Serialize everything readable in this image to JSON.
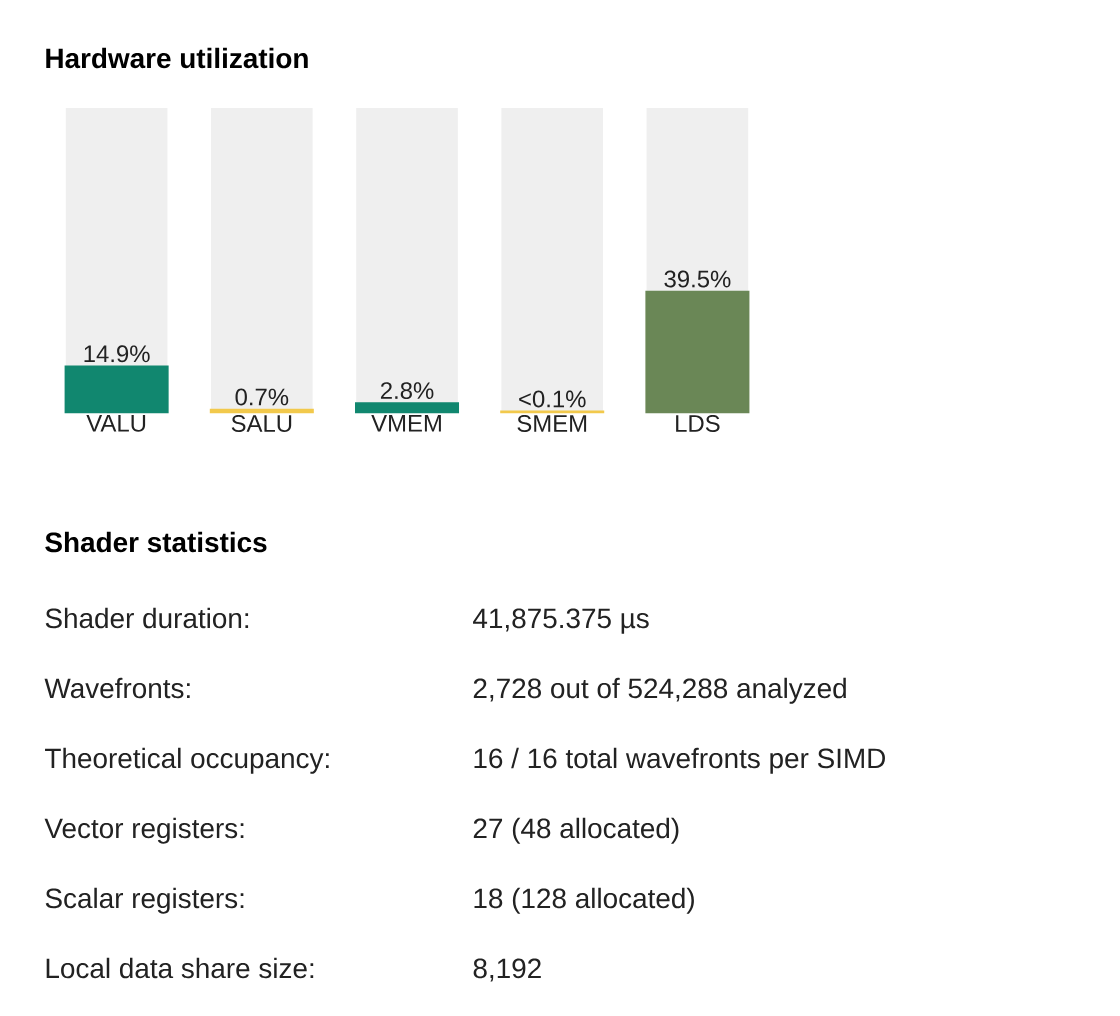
{
  "chart_data": {
    "type": "bar",
    "title": "Hardware utilization",
    "categories": [
      "VALU",
      "SALU",
      "VMEM",
      "SMEM",
      "LDS"
    ],
    "values": [
      14.9,
      0.7,
      2.8,
      0.05,
      39.5
    ],
    "value_labels": [
      "14.9%",
      "0.7%",
      "2.8%",
      "<0.1%",
      "39.5%"
    ],
    "colors": [
      "#11876f",
      "#f2c94c",
      "#11876f",
      "#f2c94c",
      "#6a8756"
    ],
    "ylim": [
      0,
      100
    ],
    "annotations": [
      "Shader statistics",
      "Shader duration:",
      "41,875.375 µs",
      "Wavefronts:",
      "2,728 out of 524,288 analyzed",
      "Theoretical occupancy:",
      "16 / 16 total wavefronts per SIMD",
      "Vector registers:",
      "27 (48 allocated)",
      "Scalar registers:",
      "18 (128 allocated)",
      "Local data share size:",
      "8,192"
    ]
  }
}
